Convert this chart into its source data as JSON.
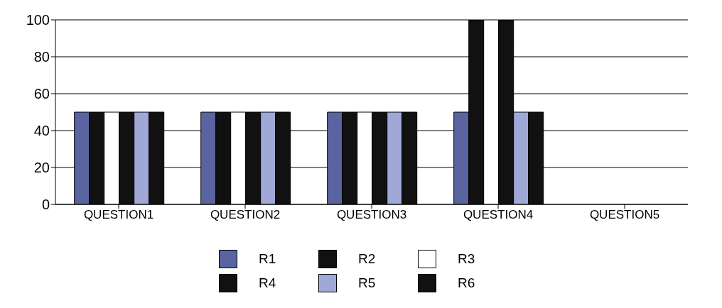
{
  "chart_data": {
    "type": "bar",
    "categories": [
      "QUESTION1",
      "QUESTION2",
      "QUESTION3",
      "QUESTION4",
      "QUESTION5"
    ],
    "series": [
      {
        "name": "R1",
        "color": "#5a64a0",
        "values": [
          50,
          50,
          50,
          50,
          null
        ]
      },
      {
        "name": "R2",
        "color": "#111111",
        "values": [
          50,
          50,
          50,
          100,
          null
        ]
      },
      {
        "name": "R3",
        "color": "#ffffff",
        "values": [
          50,
          50,
          50,
          100,
          null
        ]
      },
      {
        "name": "R4",
        "color": "#111111",
        "values": [
          50,
          50,
          50,
          100,
          null
        ]
      },
      {
        "name": "R5",
        "color": "#a0a8d8",
        "values": [
          50,
          50,
          50,
          50,
          null
        ]
      },
      {
        "name": "R6",
        "color": "#111111",
        "values": [
          50,
          50,
          50,
          50,
          null
        ]
      }
    ],
    "ylim": [
      0,
      100
    ],
    "yticks": [
      0,
      20,
      40,
      60,
      80,
      100
    ],
    "grid": "y",
    "legend": "bottom"
  }
}
